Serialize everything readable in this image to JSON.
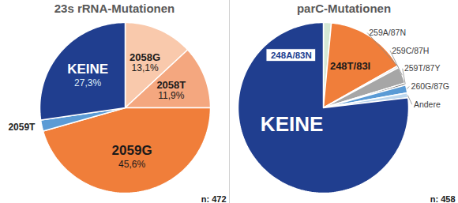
{
  "chart_data": [
    {
      "type": "pie",
      "title": "23s rRNA-Mutationen",
      "categories": [
        "2058G",
        "2058T",
        "2059G",
        "2059T",
        "KEINE"
      ],
      "values": [
        13.1,
        11.9,
        45.6,
        2.1,
        27.3
      ],
      "value_labels": [
        "13,1%",
        "11,9%",
        "45,6%",
        null,
        "27,3%"
      ],
      "colors": [
        "#F9C9AC",
        "#F4A77F",
        "#F07E3A",
        "#5B9BD5",
        "#203E8F"
      ],
      "data_labels": true,
      "annotations": [
        "n: 472"
      ]
    },
    {
      "type": "pie",
      "title": "parC-Mutationen",
      "categories": [
        "248A/83N",
        "248T/83I",
        "259A/87N",
        "259C/87H",
        "259T/87Y",
        "260G/87G",
        "Andere",
        "KEINE"
      ],
      "values": [
        1.5,
        15.3,
        0.4,
        3.1,
        0.4,
        1.5,
        0.9,
        76.9
      ],
      "colors": [
        "#D5E8D4",
        "#F07E3A",
        "#E7E6E6",
        "#A6A6A6",
        "#7F7F7F",
        "#5B9BD5",
        "#BDD7EE",
        "#203E8F"
      ],
      "data_labels": false,
      "annotations": [
        "n: 458"
      ]
    }
  ]
}
